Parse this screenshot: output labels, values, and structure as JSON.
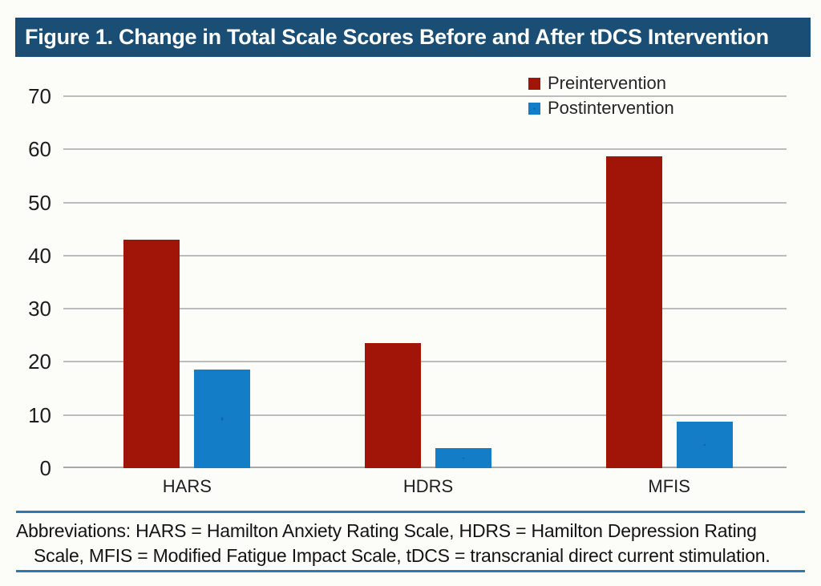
{
  "page": {
    "background": "#fcfcf9"
  },
  "header": {
    "title": "Figure 1. Change in Total Scale Scores Before and After tDCS Intervention",
    "background": "#1a4e74",
    "text_color": "#ffffff"
  },
  "chart_data": {
    "type": "bar",
    "title": "Figure 1. Change in Total Scale Scores Before and After tDCS Intervention",
    "categories": [
      "HARS",
      "HDRS",
      "MFIS"
    ],
    "series": [
      {
        "name": "Preintervention",
        "color": "#a01508",
        "values": [
          43,
          23.5,
          58.7
        ]
      },
      {
        "name": "Postintervention",
        "color": "#147dc8",
        "values": [
          18.6,
          3.7,
          8.8
        ]
      }
    ],
    "xlabel": "",
    "ylabel": "",
    "ylim": [
      0,
      70
    ],
    "yticks": [
      0,
      10,
      20,
      30,
      40,
      50,
      60,
      70
    ],
    "grid": true,
    "gridline_color": "#bcbcbc",
    "legend_position": "top-right"
  },
  "footnote": {
    "lines": [
      "Abbreviations: HARS = Hamilton Anxiety Rating Scale, HDRS = Hamilton Depression Rating",
      "Scale, MFIS = Modified Fatigue Impact Scale, tDCS = transcranial direct current stimulation."
    ]
  },
  "colors": {
    "banner": "#1a4e74",
    "preintervention": "#a01508",
    "postintervention": "#147dc8",
    "rule": "#2c78b5",
    "gridline": "#bcbcbc"
  }
}
